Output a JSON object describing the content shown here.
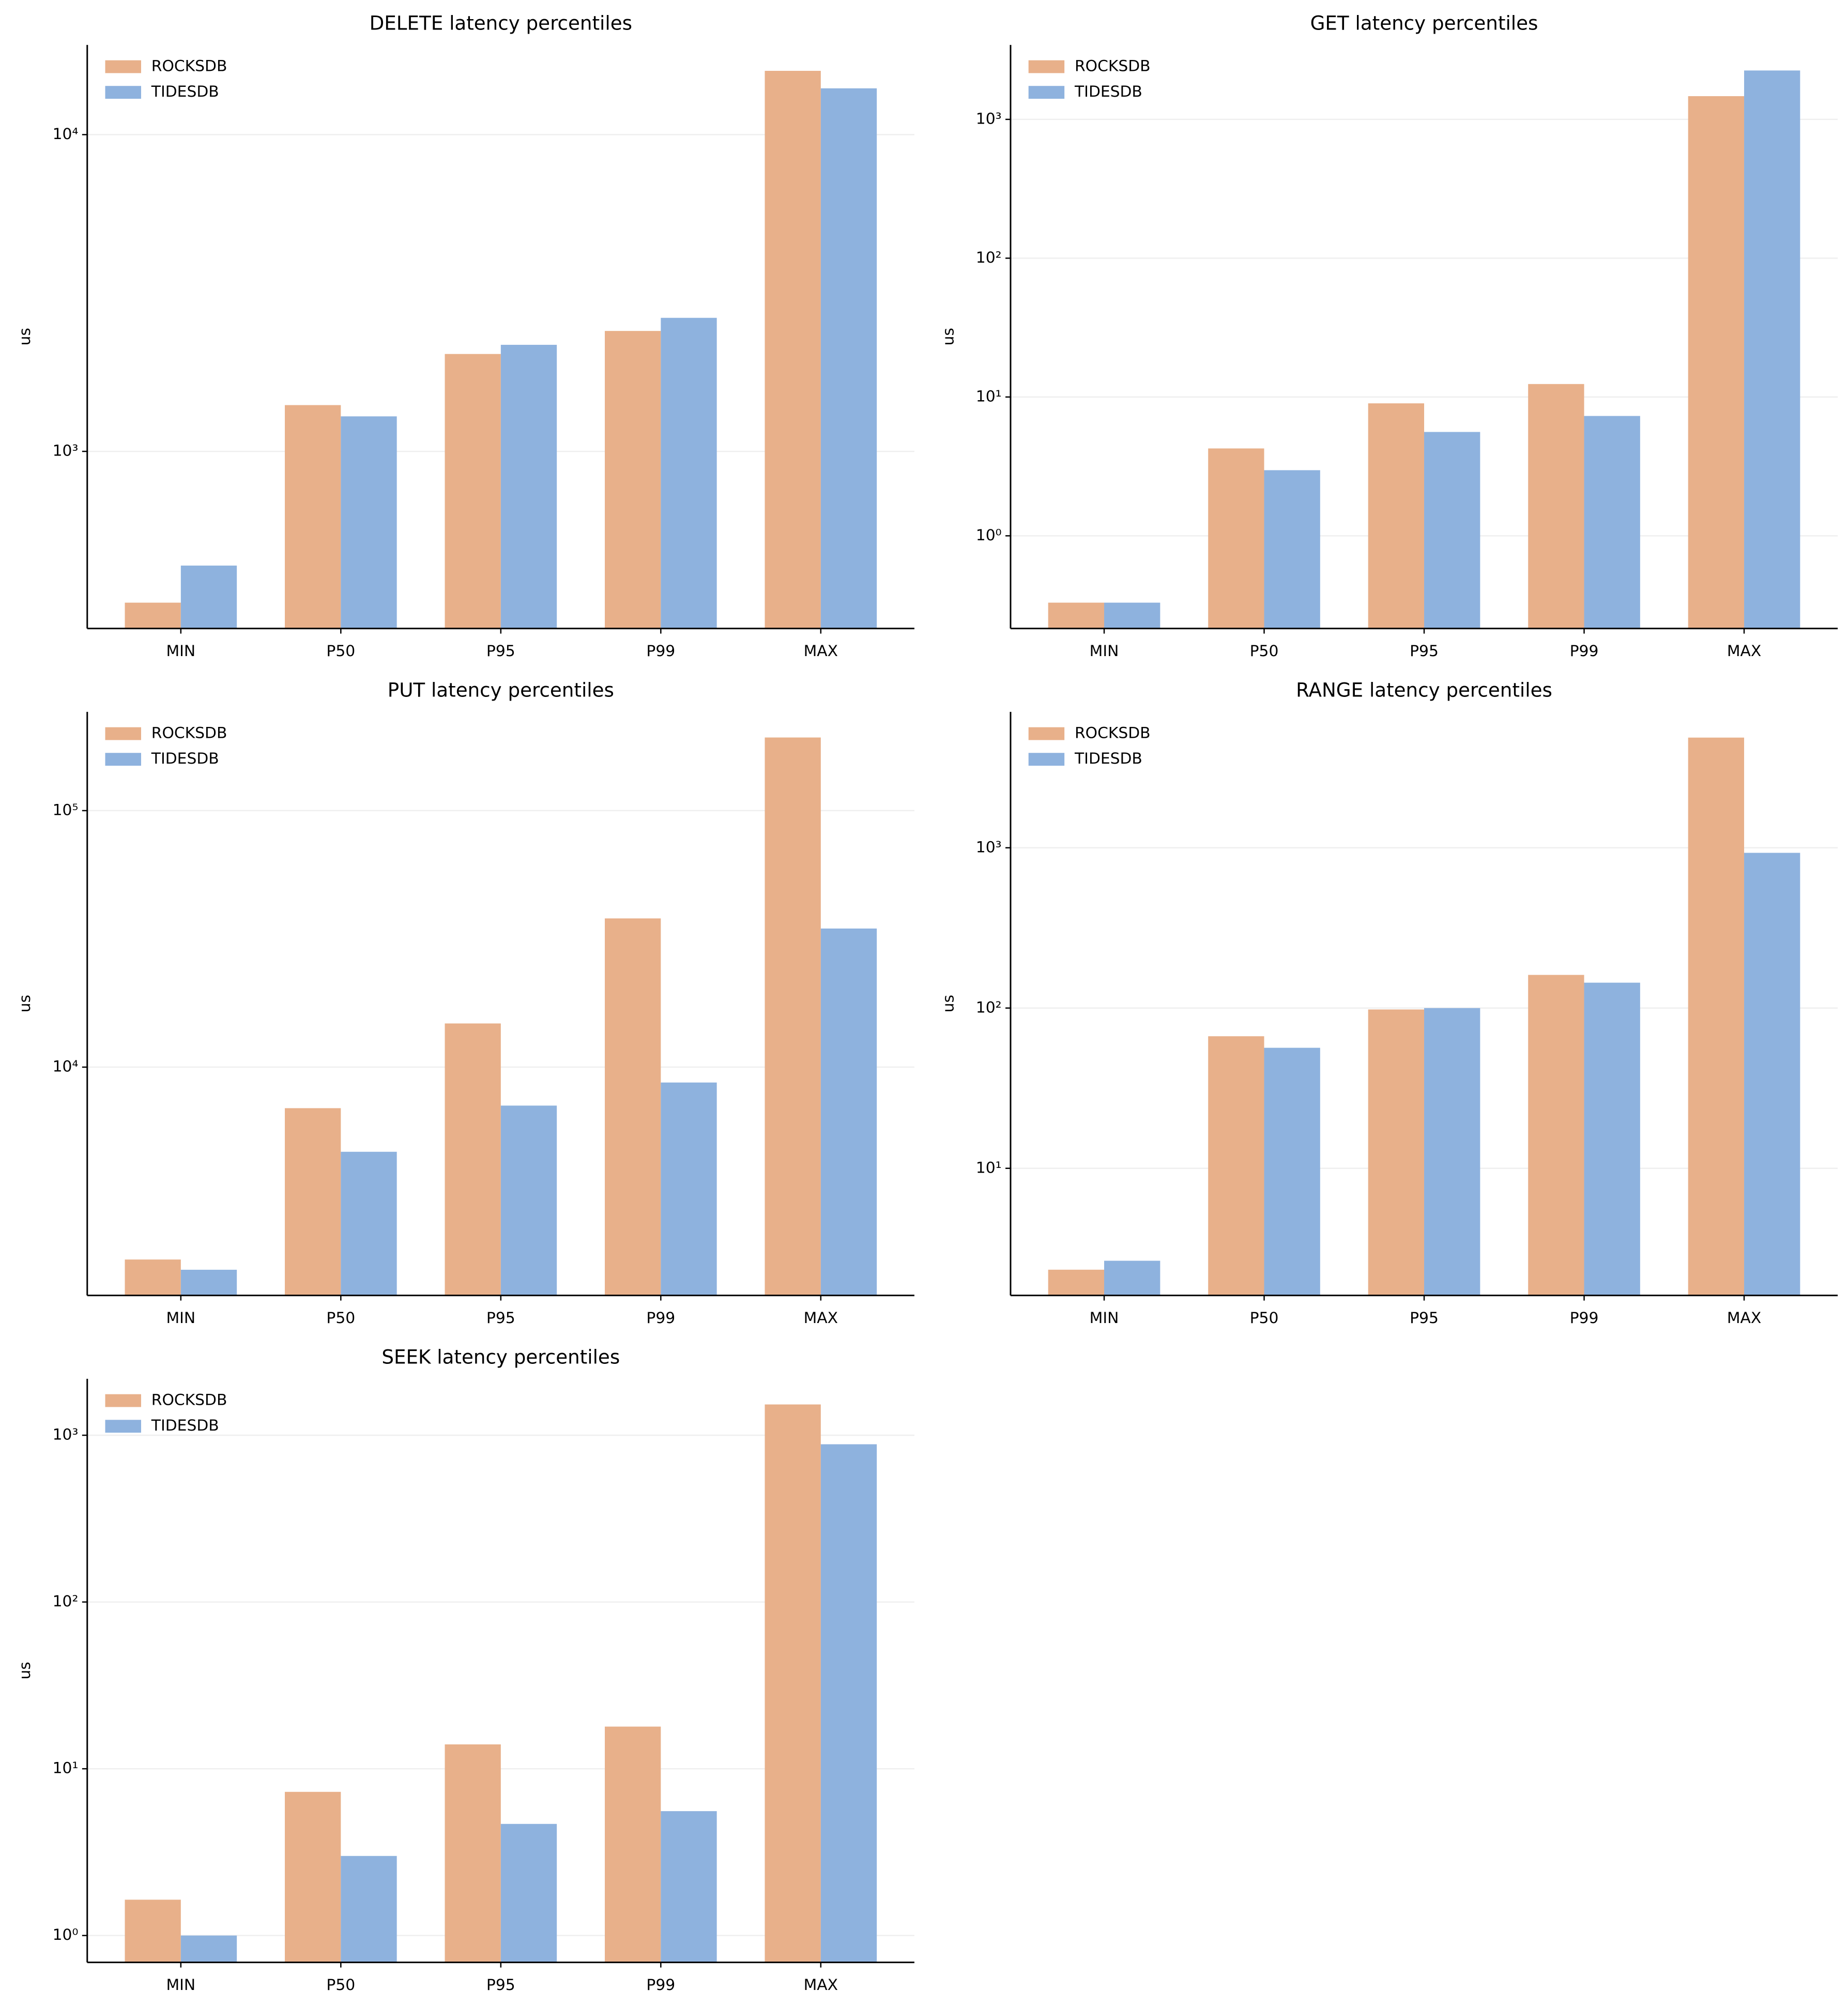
{
  "chart_data": [
    {
      "type": "bar",
      "title": "DELETE latency percentiles",
      "ylabel": "us",
      "log": true,
      "grid": true,
      "legend": "upper left",
      "categories": [
        "MIN",
        "P50",
        "P95",
        "P99",
        "MAX"
      ],
      "series": [
        {
          "name": "ROCKSDB",
          "color": "#e8b08a",
          "values": [
            333,
            1400,
            2030,
            2400,
            15900
          ]
        },
        {
          "name": "TIDESDB",
          "color": "#8eb2de",
          "values": [
            436,
            1290,
            2170,
            2640,
            14000
          ]
        }
      ],
      "ylim": [
        276,
        19200
      ],
      "yticks": [
        {
          "value": 1000,
          "label": "10³"
        },
        {
          "value": 10000,
          "label": "10⁴"
        }
      ]
    },
    {
      "type": "bar",
      "title": "GET latency percentiles",
      "ylabel": "us",
      "log": true,
      "grid": true,
      "legend": "upper left",
      "categories": [
        "MIN",
        "P50",
        "P95",
        "P99",
        "MAX"
      ],
      "series": [
        {
          "name": "ROCKSDB",
          "color": "#e8b08a",
          "values": [
            0.33,
            4.26,
            9.0,
            12.4,
            1470
          ]
        },
        {
          "name": "TIDESDB",
          "color": "#8eb2de",
          "values": [
            0.33,
            2.97,
            5.6,
            7.3,
            2250
          ]
        }
      ],
      "ylim": [
        0.215,
        3440
      ],
      "yticks": [
        {
          "value": 1,
          "label": "10⁰"
        },
        {
          "value": 10,
          "label": "10¹"
        },
        {
          "value": 100,
          "label": "10²"
        },
        {
          "value": 1000,
          "label": "10³"
        }
      ]
    },
    {
      "type": "bar",
      "title": "PUT latency percentiles",
      "ylabel": "us",
      "log": true,
      "grid": true,
      "legend": "upper left",
      "categories": [
        "MIN",
        "P50",
        "P95",
        "P99",
        "MAX"
      ],
      "series": [
        {
          "name": "ROCKSDB",
          "color": "#e8b08a",
          "values": [
            1778,
            6918,
            14800,
            38000,
            192800
          ]
        },
        {
          "name": "TIDESDB",
          "color": "#8eb2de",
          "values": [
            1622,
            4677,
            7080,
            8710,
            34700
          ]
        }
      ],
      "ylim": [
        1288,
        242700
      ],
      "yticks": [
        {
          "value": 10000,
          "label": "10⁴"
        },
        {
          "value": 100000,
          "label": "10⁵"
        }
      ]
    },
    {
      "type": "bar",
      "title": "RANGE latency percentiles",
      "ylabel": "us",
      "log": true,
      "grid": true,
      "legend": "upper left",
      "categories": [
        "MIN",
        "P50",
        "P95",
        "P99",
        "MAX"
      ],
      "series": [
        {
          "name": "ROCKSDB",
          "color": "#e8b08a",
          "values": [
            2.33,
            66.7,
            98,
            161,
            4870
          ]
        },
        {
          "name": "TIDESDB",
          "color": "#8eb2de",
          "values": [
            2.65,
            56.5,
            100,
            144,
            930
          ]
        }
      ],
      "ylim": [
        1.61,
        7050
      ],
      "yticks": [
        {
          "value": 10,
          "label": "10¹"
        },
        {
          "value": 100,
          "label": "10²"
        },
        {
          "value": 1000,
          "label": "10³"
        }
      ]
    },
    {
      "type": "bar",
      "title": "SEEK latency percentiles",
      "ylabel": "us",
      "log": true,
      "grid": true,
      "legend": "upper left",
      "categories": [
        "MIN",
        "P50",
        "P95",
        "P99",
        "MAX"
      ],
      "series": [
        {
          "name": "ROCKSDB",
          "color": "#e8b08a",
          "values": [
            1.64,
            7.27,
            14,
            17.9,
            1530
          ]
        },
        {
          "name": "TIDESDB",
          "color": "#8eb2de",
          "values": [
            1.0,
            3.0,
            4.67,
            5.57,
            883
          ]
        }
      ],
      "ylim": [
        0.69,
        2180
      ],
      "yticks": [
        {
          "value": 1,
          "label": "10⁰"
        },
        {
          "value": 10,
          "label": "10¹"
        },
        {
          "value": 100,
          "label": "10²"
        },
        {
          "value": 1000,
          "label": "10³"
        }
      ]
    }
  ]
}
